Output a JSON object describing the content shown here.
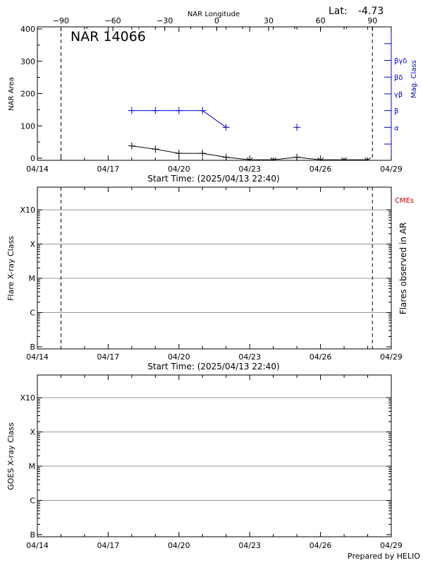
{
  "chart_data": [
    {
      "type": "line",
      "title": "NAR 14066",
      "lat_label": "Lat:",
      "lat_value": "-4.73",
      "top_axis_label": "NAR Longitude",
      "top_ticks": [
        -90,
        -60,
        -30,
        0,
        30,
        60,
        90
      ],
      "top_tick_labels": [
        "−90",
        "−60",
        "−30",
        "0",
        "30",
        "60",
        "90"
      ],
      "ylabel": "NAR Area",
      "y_ticks": [
        0,
        100,
        200,
        300,
        400
      ],
      "ylim": [
        0,
        400
      ],
      "right_label": "Mag. Class",
      "right_ticks": [
        "α",
        "β",
        "γβ",
        "βδ",
        "βγδ"
      ],
      "xlabel": "Start Time: (2025/04/13 22:40)",
      "x_tick_labels": [
        "04/14",
        "04/17",
        "04/20",
        "04/23",
        "04/26",
        "04/29"
      ],
      "vlines_days": [
        1.0,
        14.2
      ],
      "series": [
        {
          "color": "#000000",
          "x": [
            4,
            5,
            6,
            7,
            8,
            9,
            10,
            11,
            12,
            13,
            14
          ],
          "values": [
            38,
            28,
            15,
            15,
            3,
            -5,
            -5,
            3,
            -5,
            -5,
            -5
          ]
        },
        {
          "color": "#0000cc",
          "x": [
            4,
            5,
            6,
            7,
            8
          ],
          "mag_values": [
            2,
            2,
            2,
            2,
            1
          ]
        },
        {
          "color": "#0000cc",
          "x": [
            11
          ],
          "mag_values": [
            1
          ],
          "markers_only": true
        }
      ]
    },
    {
      "type": "scatter",
      "ylabel": "Flare X-ray Class",
      "right_label": "Flares observed in AR",
      "cme_label": "CMEs",
      "y_tick_labels": [
        "B",
        "C",
        "M",
        "X",
        "X10"
      ],
      "xlabel": "Start Time: (2025/04/13 22:40)",
      "x_tick_labels": [
        "04/14",
        "04/17",
        "04/20",
        "04/23",
        "04/26",
        "04/29"
      ],
      "vlines_days": [
        1.0,
        14.2
      ],
      "series": []
    },
    {
      "type": "line",
      "ylabel": "GOES X-ray Class",
      "y_tick_labels": [
        "B",
        "C",
        "M",
        "X",
        "X10"
      ],
      "x_tick_labels": [
        "04/14",
        "04/17",
        "04/20",
        "04/23",
        "04/26",
        "04/29"
      ],
      "series": []
    }
  ],
  "footer": {
    "credit": "Prepared by HELIO"
  }
}
